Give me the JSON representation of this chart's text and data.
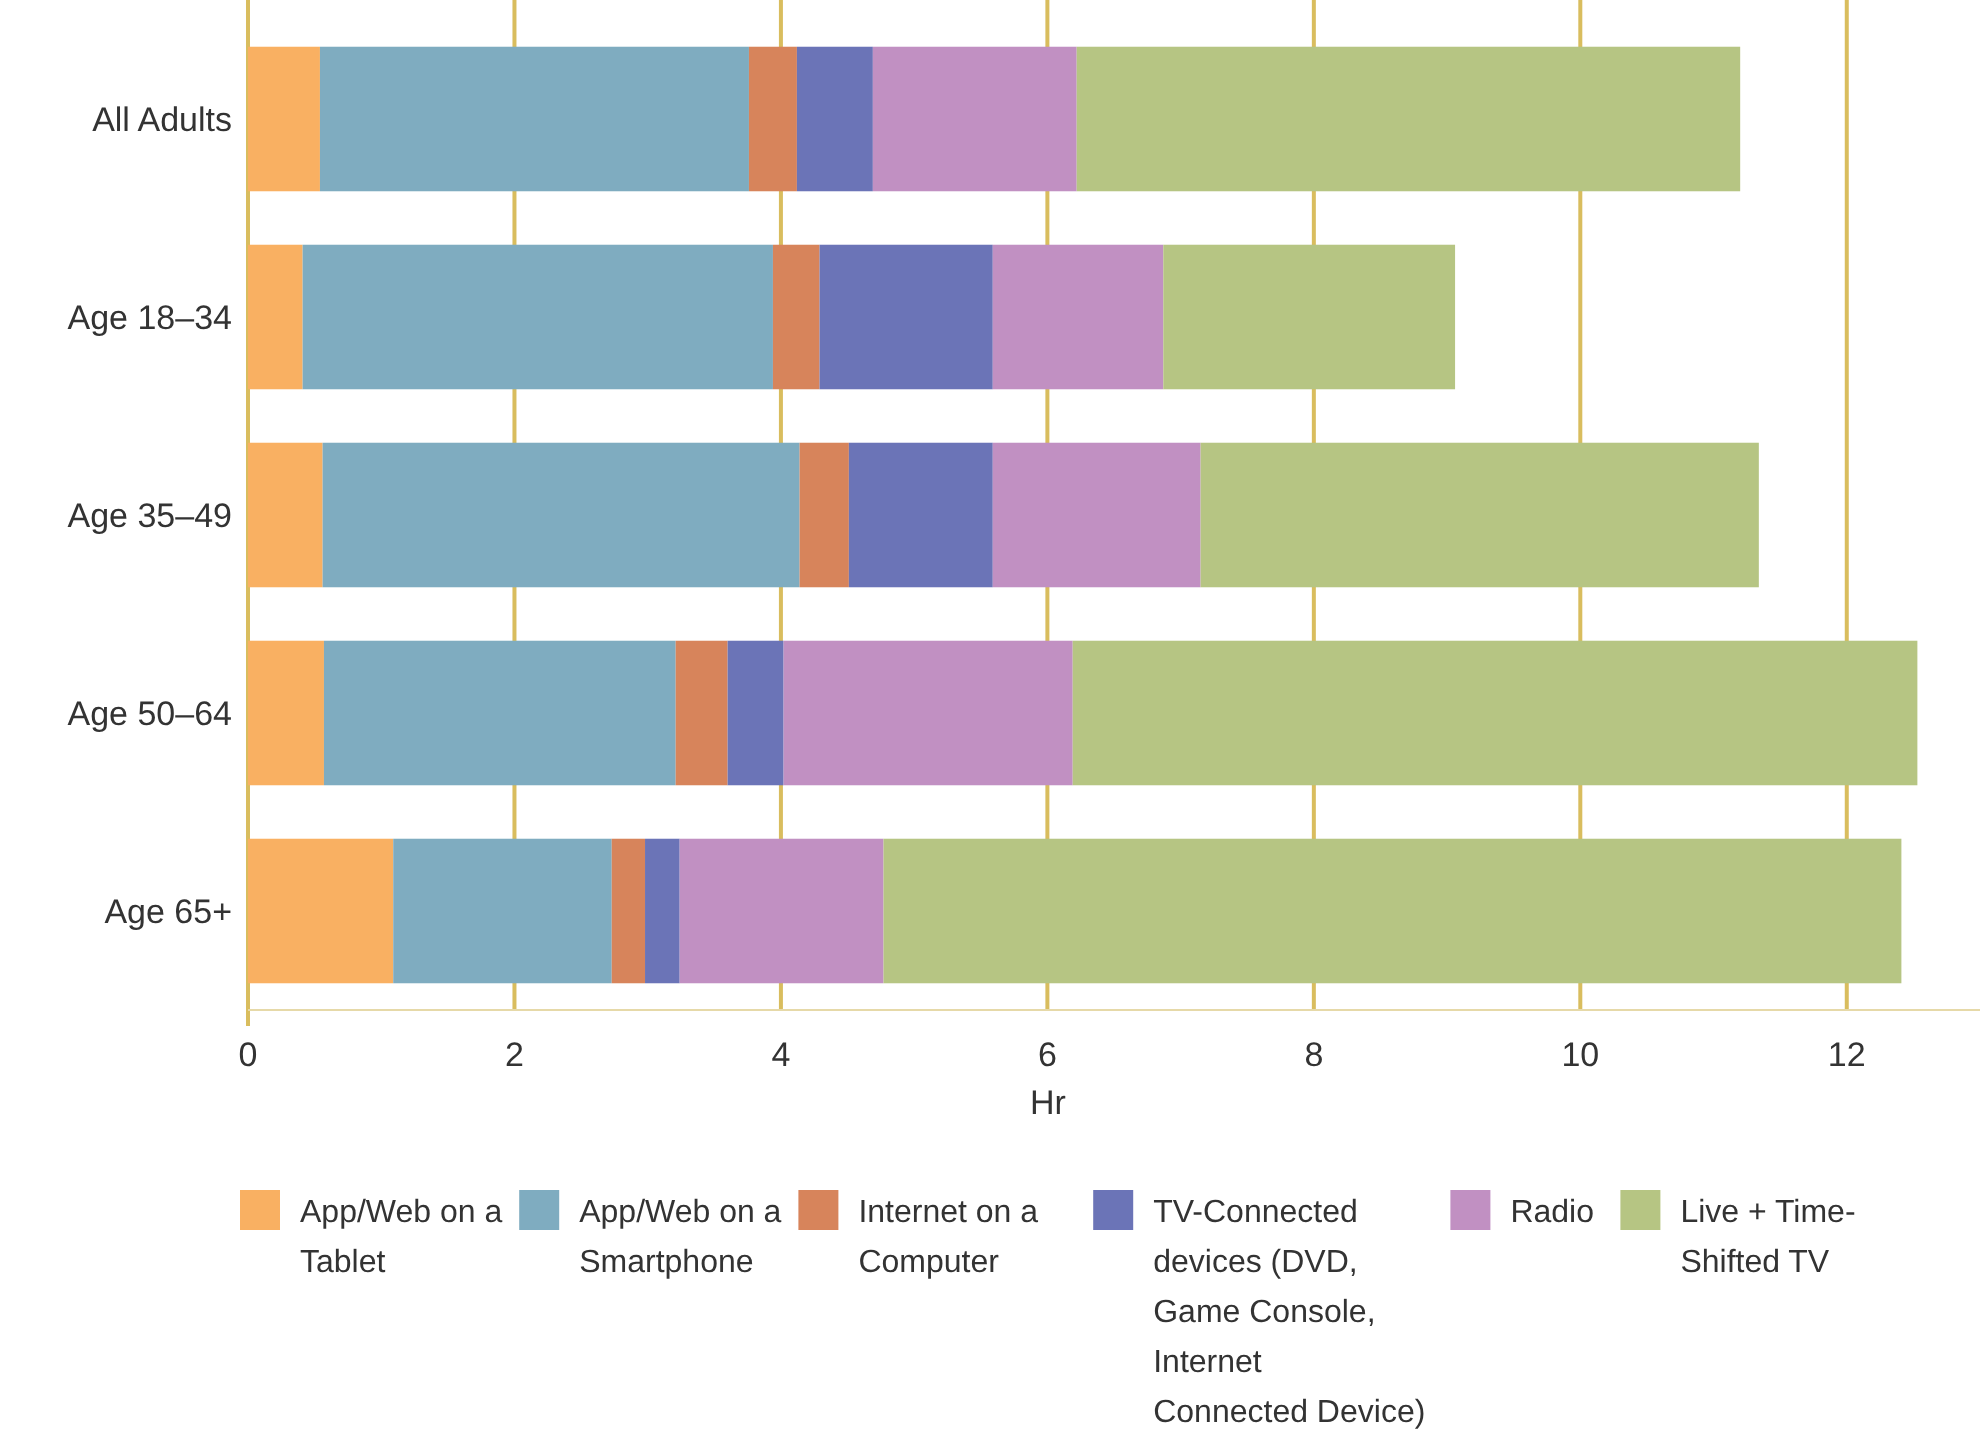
{
  "chart_data": {
    "type": "bar",
    "orientation": "horizontal",
    "stacked": true,
    "xlabel": "Hr",
    "categories": [
      "All Adults",
      "Age 18–34",
      "Age 35–49",
      "Age 50–64",
      "Age 65+"
    ],
    "series": [
      {
        "name": "App/Web on a Tablet",
        "color": "#f9b062",
        "values": [
          0.54,
          0.41,
          0.56,
          0.57,
          1.09
        ]
      },
      {
        "name": "App/Web on a Smartphone",
        "color": "#7facc0",
        "values": [
          3.22,
          3.53,
          3.58,
          2.64,
          1.64
        ]
      },
      {
        "name": "Internet on a Computer",
        "color": "#d7845b",
        "values": [
          0.36,
          0.35,
          0.37,
          0.39,
          0.25
        ]
      },
      {
        "name": "TV-Connected devices (DVD, Game Console, Internet Connected Device)",
        "color": "#6b74b7",
        "values": [
          0.57,
          1.3,
          1.08,
          0.42,
          0.26
        ]
      },
      {
        "name": "Radio",
        "color": "#c190c2",
        "values": [
          1.53,
          1.28,
          1.56,
          2.17,
          1.53
        ]
      },
      {
        "name": "Live + Time-Shifted TV",
        "color": "#b6c583",
        "values": [
          4.98,
          2.19,
          4.19,
          6.34,
          7.64
        ]
      }
    ],
    "xlim": [
      0,
      13
    ],
    "xticks": [
      0,
      2,
      4,
      6,
      8,
      10,
      12
    ],
    "grid": "x",
    "legend": "bottom"
  }
}
